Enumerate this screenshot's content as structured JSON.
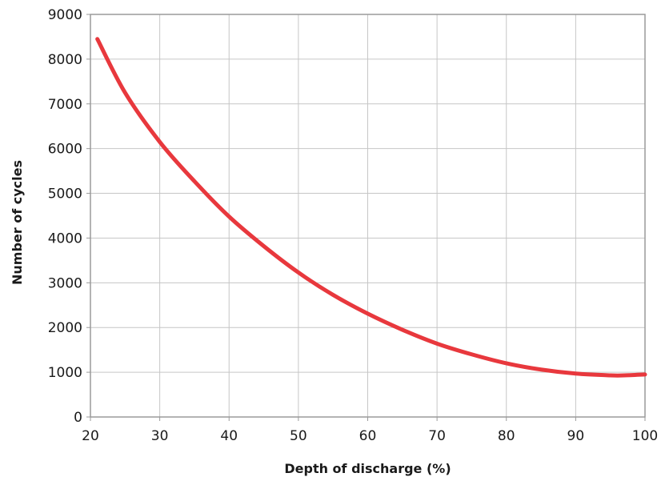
{
  "chart_data": {
    "type": "line",
    "title": "",
    "xlabel": "Depth of discharge (%)",
    "ylabel": "Number of cycles",
    "xlim": [
      20,
      100
    ],
    "ylim": [
      0,
      9000
    ],
    "x_ticks": [
      "20",
      "30",
      "40",
      "50",
      "60",
      "70",
      "80",
      "90",
      "100"
    ],
    "y_ticks": [
      "0",
      "1000",
      "2000",
      "3000",
      "4000",
      "5000",
      "6000",
      "7000",
      "8000",
      "9000"
    ],
    "grid": true,
    "legend": "none",
    "series": [
      {
        "color": "#e8383d",
        "x": [
          21,
          25,
          30,
          35,
          40,
          45,
          50,
          55,
          60,
          65,
          70,
          75,
          80,
          85,
          90,
          95,
          97,
          100
        ],
        "y": [
          8450,
          7250,
          6150,
          5270,
          4480,
          3820,
          3230,
          2730,
          2310,
          1950,
          1640,
          1400,
          1200,
          1060,
          970,
          930,
          930,
          950
        ]
      }
    ]
  }
}
